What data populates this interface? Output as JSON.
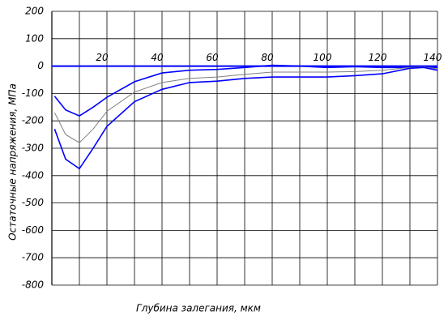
{
  "chart_data": {
    "type": "line",
    "y_label": "Остаточные напряжения, МПа",
    "x_label": "Глубина залегания, мкм",
    "x": [
      1,
      5,
      10,
      15,
      20,
      30,
      40,
      50,
      60,
      70,
      80,
      90,
      100,
      110,
      120,
      130,
      135,
      140
    ],
    "series": [
      {
        "color": "#0000ff",
        "values": [
          -110,
          -160,
          -182,
          -150,
          -114,
          -57,
          -25,
          -15,
          -12,
          -5,
          3,
          0,
          -5,
          -2,
          -5,
          -5,
          -3,
          -5
        ]
      },
      {
        "color": "#808080",
        "values": [
          -170,
          -250,
          -280,
          -230,
          -165,
          -95,
          -60,
          -45,
          -40,
          -30,
          -22,
          -22,
          -22,
          -20,
          -15,
          -5,
          -3,
          -10
        ]
      },
      {
        "color": "#0000ff",
        "values": [
          -230,
          -340,
          -375,
          -300,
          -220,
          -130,
          -85,
          -60,
          -55,
          -45,
          -40,
          -40,
          -40,
          -35,
          -28,
          -8,
          -5,
          -15
        ]
      }
    ],
    "xlim": [
      0,
      140
    ],
    "xticks": [
      20,
      40,
      60,
      80,
      100,
      120,
      140
    ],
    "ylim": [
      -800,
      200
    ],
    "yticks": [
      200,
      100,
      0,
      -100,
      -200,
      -300,
      -400,
      -500,
      -600,
      -700,
      -800
    ],
    "grid": true
  }
}
